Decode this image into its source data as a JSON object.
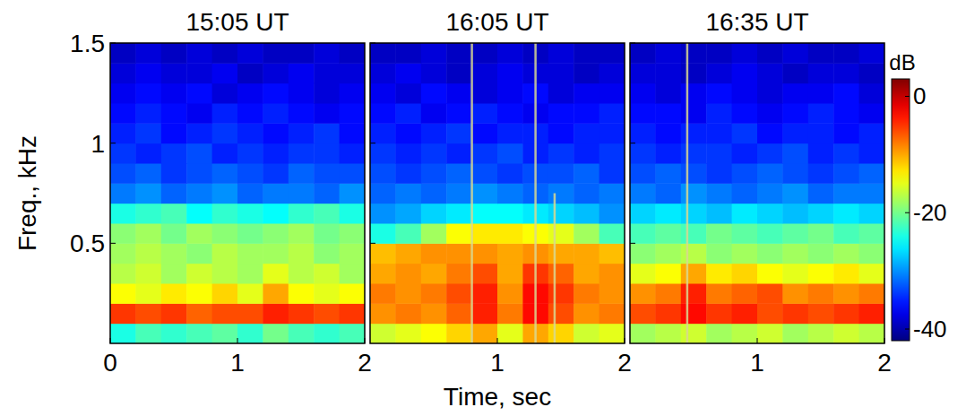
{
  "chart_data": [
    {
      "type": "heatmap",
      "title": "15:05 UT",
      "ylabel": "Freq., kHz",
      "tick_labels": true,
      "x": [
        0.1,
        0.3,
        0.5,
        0.7,
        0.9,
        1.1,
        1.3,
        1.5,
        1.7,
        1.9
      ],
      "y": [
        0.05,
        0.15,
        0.25,
        0.35,
        0.45,
        0.55,
        0.65,
        0.75,
        0.85,
        0.95,
        1.05,
        1.15,
        1.25,
        1.35,
        1.45
      ],
      "xlim": [
        0,
        2
      ],
      "xticks": [
        0,
        1,
        2
      ],
      "ylim": [
        0,
        1.5
      ],
      "yticks": [
        0.5,
        1,
        1.5
      ],
      "values": [
        [
          -24,
          -22,
          -23,
          -22,
          -21,
          -23,
          -20,
          -22,
          -23,
          -22
        ],
        [
          -5,
          -6,
          -5,
          -7,
          -6,
          -6,
          -4,
          -5,
          -6,
          -5
        ],
        [
          -14,
          -15,
          -13,
          -14,
          -12,
          -15,
          -10,
          -14,
          -15,
          -14
        ],
        [
          -17,
          -16,
          -18,
          -16,
          -17,
          -18,
          -15,
          -17,
          -16,
          -18
        ],
        [
          -18,
          -17,
          -18,
          -19,
          -17,
          -18,
          -18,
          -17,
          -19,
          -18
        ],
        [
          -19,
          -18,
          -20,
          -18,
          -19,
          -20,
          -19,
          -18,
          -20,
          -19
        ],
        [
          -24,
          -23,
          -22,
          -25,
          -23,
          -24,
          -25,
          -23,
          -22,
          -24
        ],
        [
          -31,
          -30,
          -32,
          -31,
          -30,
          -32,
          -31,
          -31,
          -32,
          -30
        ],
        [
          -33,
          -32,
          -34,
          -33,
          -32,
          -33,
          -34,
          -32,
          -33,
          -33
        ],
        [
          -34,
          -35,
          -34,
          -33,
          -35,
          -34,
          -35,
          -34,
          -34,
          -35
        ],
        [
          -35,
          -34,
          -36,
          -35,
          -34,
          -35,
          -36,
          -35,
          -34,
          -36
        ],
        [
          -36,
          -35,
          -36,
          -37,
          -35,
          -36,
          -35,
          -36,
          -37,
          -36
        ],
        [
          -37,
          -36,
          -37,
          -36,
          -38,
          -37,
          -36,
          -37,
          -38,
          -37
        ],
        [
          -38,
          -37,
          -38,
          -38,
          -37,
          -39,
          -38,
          -37,
          -38,
          -38
        ],
        [
          -39,
          -38,
          -39,
          -38,
          -39,
          -38,
          -39,
          -39,
          -38,
          -39
        ]
      ],
      "impulses": {
        "times": [],
        "fmax": []
      }
    },
    {
      "type": "heatmap",
      "title": "16:05 UT",
      "xlabel": "Time, sec",
      "tick_labels": "x",
      "x": [
        0.1,
        0.3,
        0.5,
        0.7,
        0.9,
        1.1,
        1.3,
        1.5,
        1.7,
        1.9
      ],
      "y": [
        0.05,
        0.15,
        0.25,
        0.35,
        0.45,
        0.55,
        0.65,
        0.75,
        0.85,
        0.95,
        1.05,
        1.15,
        1.25,
        1.35,
        1.45
      ],
      "xlim": [
        0,
        2
      ],
      "xticks": [
        1,
        2
      ],
      "ylim": [
        0,
        1.5
      ],
      "yticks": [
        0.5,
        1,
        1.5
      ],
      "values": [
        [
          -16,
          -15,
          -14,
          -12,
          -10,
          -15,
          -10,
          -12,
          -16,
          -15
        ],
        [
          -9,
          -8,
          -9,
          -7,
          -4,
          -8,
          -3,
          -6,
          -9,
          -8
        ],
        [
          -8,
          -9,
          -8,
          -6,
          -4,
          -9,
          -3,
          -5,
          -8,
          -9
        ],
        [
          -10,
          -9,
          -10,
          -8,
          -6,
          -10,
          -5,
          -7,
          -10,
          -9
        ],
        [
          -11,
          -10,
          -9,
          -9,
          -9,
          -10,
          -9,
          -10,
          -10,
          -11
        ],
        [
          -24,
          -22,
          -18,
          -14,
          -13,
          -13,
          -14,
          -15,
          -18,
          -22
        ],
        [
          -30,
          -29,
          -27,
          -26,
          -25,
          -25,
          -26,
          -27,
          -28,
          -30
        ],
        [
          -32,
          -31,
          -32,
          -31,
          -30,
          -31,
          -32,
          -31,
          -32,
          -31
        ],
        [
          -33,
          -34,
          -33,
          -32,
          -33,
          -34,
          -33,
          -33,
          -32,
          -34
        ],
        [
          -34,
          -35,
          -34,
          -35,
          -34,
          -33,
          -35,
          -34,
          -35,
          -34
        ],
        [
          -35,
          -36,
          -35,
          -34,
          -36,
          -35,
          -35,
          -36,
          -35,
          -35
        ],
        [
          -36,
          -35,
          -37,
          -36,
          -35,
          -36,
          -37,
          -36,
          -36,
          -35
        ],
        [
          -37,
          -38,
          -36,
          -37,
          -38,
          -37,
          -36,
          -38,
          -37,
          -37
        ],
        [
          -38,
          -37,
          -38,
          -39,
          -38,
          -37,
          -38,
          -38,
          -39,
          -38
        ],
        [
          -39,
          -39,
          -38,
          -39,
          -39,
          -38,
          -39,
          -38,
          -39,
          -39
        ]
      ],
      "impulses": {
        "times": [
          0.8,
          1.3,
          1.45
        ],
        "fmax": [
          1.5,
          1.5,
          0.75
        ]
      }
    },
    {
      "type": "heatmap",
      "title": "16:35 UT",
      "tick_labels": "x",
      "x": [
        0.1,
        0.3,
        0.5,
        0.7,
        0.9,
        1.1,
        1.3,
        1.5,
        1.7,
        1.9
      ],
      "y": [
        0.05,
        0.15,
        0.25,
        0.35,
        0.45,
        0.55,
        0.65,
        0.75,
        0.85,
        0.95,
        1.05,
        1.15,
        1.25,
        1.35,
        1.45
      ],
      "xlim": [
        0,
        2
      ],
      "xticks": [
        1,
        2
      ],
      "ylim": [
        0,
        1.5
      ],
      "yticks": [
        0.5,
        1,
        1.5
      ],
      "values": [
        [
          -18,
          -17,
          -16,
          -18,
          -17,
          -16,
          -18,
          -17,
          -16,
          -17
        ],
        [
          -6,
          -5,
          -3,
          -5,
          -4,
          -6,
          -5,
          -6,
          -5,
          -4
        ],
        [
          -9,
          -8,
          -4,
          -8,
          -7,
          -6,
          -9,
          -8,
          -9,
          -8
        ],
        [
          -15,
          -14,
          -10,
          -13,
          -12,
          -14,
          -15,
          -14,
          -13,
          -15
        ],
        [
          -19,
          -18,
          -17,
          -19,
          -18,
          -19,
          -18,
          -19,
          -18,
          -19
        ],
        [
          -22,
          -21,
          -22,
          -20,
          -21,
          -22,
          -21,
          -20,
          -22,
          -21
        ],
        [
          -27,
          -26,
          -27,
          -28,
          -26,
          -27,
          -28,
          -27,
          -26,
          -27
        ],
        [
          -31,
          -32,
          -30,
          -31,
          -32,
          -31,
          -30,
          -32,
          -31,
          -31
        ],
        [
          -33,
          -32,
          -33,
          -34,
          -33,
          -32,
          -33,
          -34,
          -33,
          -32
        ],
        [
          -34,
          -35,
          -34,
          -34,
          -35,
          -34,
          -33,
          -35,
          -34,
          -35
        ],
        [
          -35,
          -36,
          -35,
          -35,
          -34,
          -36,
          -35,
          -35,
          -36,
          -35
        ],
        [
          -36,
          -36,
          -37,
          -35,
          -36,
          -37,
          -36,
          -35,
          -36,
          -37
        ],
        [
          -37,
          -38,
          -37,
          -36,
          -37,
          -38,
          -37,
          -37,
          -36,
          -38
        ],
        [
          -38,
          -38,
          -39,
          -38,
          -37,
          -38,
          -39,
          -38,
          -38,
          -39
        ],
        [
          -39,
          -38,
          -39,
          -39,
          -38,
          -39,
          -38,
          -39,
          -39,
          -38
        ]
      ],
      "impulses": {
        "times": [
          0.45
        ],
        "fmax": [
          1.5
        ]
      },
      "colorbar": {
        "label": "dB",
        "range": [
          -42,
          3
        ],
        "ticks": [
          0,
          -20,
          -40
        ]
      }
    }
  ]
}
